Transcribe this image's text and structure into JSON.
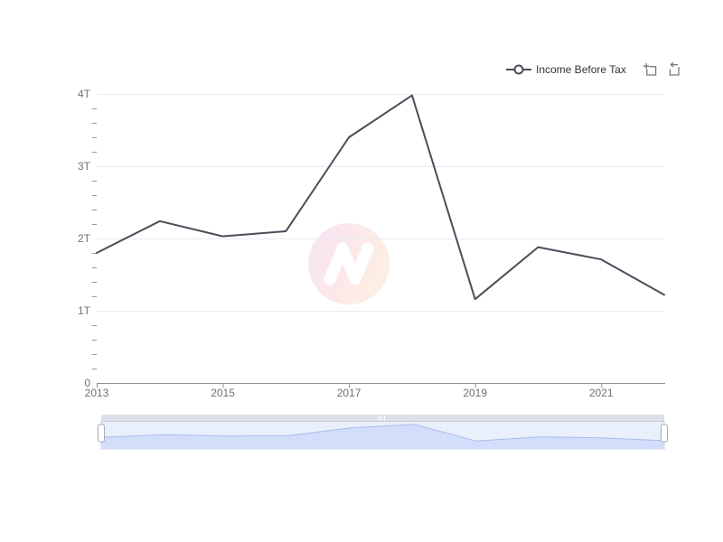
{
  "legend": {
    "items": [
      {
        "label": "Income Before Tax"
      }
    ]
  },
  "toolbox": {
    "icons": [
      {
        "name": "data-zoom-icon"
      },
      {
        "name": "restore-icon"
      }
    ]
  },
  "watermark": {
    "letter": "N",
    "gradient_from": "#f6e6f3",
    "gradient_mid": "#fce7ea",
    "gradient_to": "#fdeee3"
  },
  "colors": {
    "series_line": "#4a4e59",
    "grid_line": "#e6ecf4",
    "axis_line": "#8f9196",
    "minor_tick": "#989ba1",
    "axis_label": "#6e7079",
    "legend_text": "#333333",
    "slider_background": "#e9effb",
    "slider_border": "#c9cfdb",
    "slider_area_fill": "#d2defa",
    "slider_line": "#a9bde9",
    "slider_strip": "#dde0e8",
    "handle_fill": "#ffffff",
    "handle_border": "#a9adb8"
  },
  "chart_data": {
    "type": "line",
    "title": "",
    "xlabel": "",
    "ylabel": "",
    "x": [
      2013,
      2014,
      2015,
      2016,
      2017,
      2018,
      2019,
      2020,
      2021,
      2022
    ],
    "series": [
      {
        "name": "Income Before Tax",
        "unit": "T",
        "values": [
          1.8,
          2.24,
          2.03,
          2.1,
          3.4,
          3.98,
          1.16,
          1.88,
          1.71,
          1.22
        ]
      }
    ],
    "ylim": [
      0,
      4
    ],
    "yticks": [
      {
        "value": 0,
        "label": "0"
      },
      {
        "value": 1,
        "label": "1T"
      },
      {
        "value": 2,
        "label": "2T"
      },
      {
        "value": 3,
        "label": "3T"
      },
      {
        "value": 4,
        "label": "4T"
      }
    ],
    "minor_tick_step": 0.2,
    "xticks": [
      {
        "value": 2013,
        "label": "2013"
      },
      {
        "value": 2015,
        "label": "2015"
      },
      {
        "value": 2017,
        "label": "2017"
      },
      {
        "value": 2019,
        "label": "2019"
      },
      {
        "value": 2021,
        "label": "2021"
      }
    ],
    "grid": "horizontal",
    "legend_position": "top-right",
    "datazoom": {
      "range_start": 2013,
      "range_end": 2022
    }
  }
}
